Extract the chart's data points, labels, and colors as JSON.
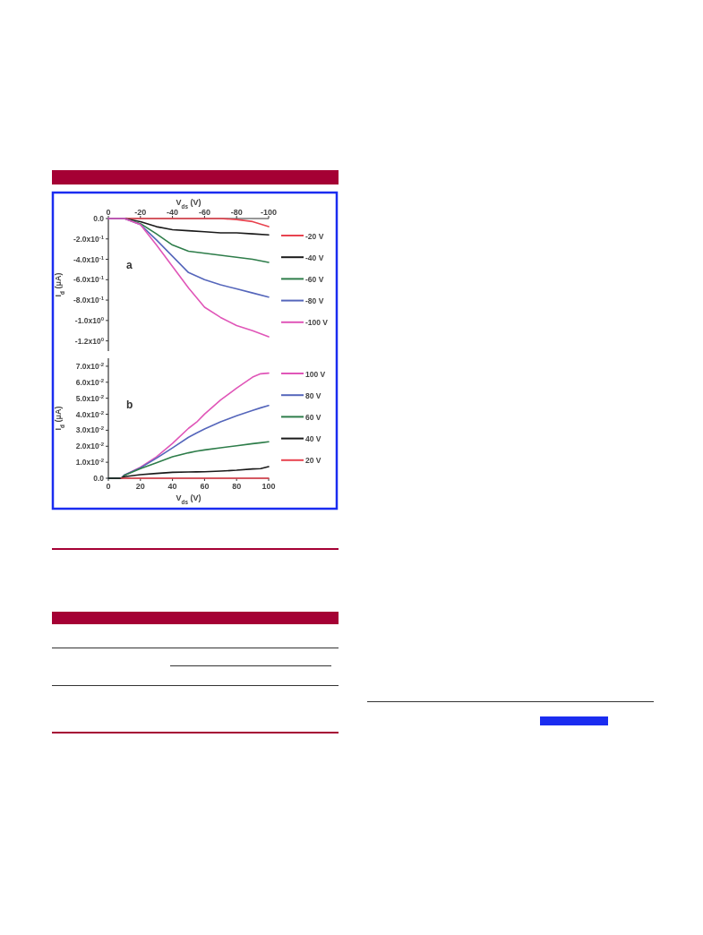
{
  "chart_data": [
    {
      "type": "line",
      "xlabel": "V$_{ds}$ (V)",
      "ylabel": "I$_{d}$ (μA)",
      "annotations": [
        "a"
      ],
      "legend": "right",
      "xlim": [
        0,
        -100
      ],
      "xticks": [
        0,
        -20,
        -40,
        -60,
        -80,
        -100
      ],
      "ylim": [
        -1.3,
        0
      ],
      "yticks": [
        {
          "value": 0,
          "label": "0.0"
        },
        {
          "value": -0.2,
          "label": "-2.0x10$^{-1}$"
        },
        {
          "value": -0.4,
          "label": "-4.0x10$^{-1}$"
        },
        {
          "value": -0.6,
          "label": "-6.0x10$^{-1}$"
        },
        {
          "value": -0.8,
          "label": "-8.0x10$^{-1}$"
        },
        {
          "value": -1.0,
          "label": "-1.0x10$^{0}$"
        },
        {
          "value": -1.2,
          "label": "-1.2x10$^{0}$"
        }
      ],
      "x": [
        0,
        -10,
        -20,
        -30,
        -40,
        -50,
        -60,
        -70,
        -80,
        -90,
        -100
      ],
      "series": [
        {
          "name": "-20 V",
          "color": "#e8434f",
          "values": [
            0,
            0,
            0,
            0,
            0,
            0,
            0,
            0,
            -0.01,
            -0.03,
            -0.08
          ]
        },
        {
          "name": "-40 V",
          "color": "#1a1a1a",
          "values": [
            0,
            0,
            -0.03,
            -0.08,
            -0.11,
            -0.12,
            -0.13,
            -0.14,
            -0.14,
            -0.15,
            -0.16
          ]
        },
        {
          "name": "-60 V",
          "color": "#2e7d4a",
          "values": [
            0,
            0,
            -0.05,
            -0.15,
            -0.26,
            -0.32,
            -0.34,
            -0.36,
            -0.38,
            -0.4,
            -0.43
          ]
        },
        {
          "name": "-80 V",
          "color": "#5566bb",
          "values": [
            0,
            0,
            -0.06,
            -0.21,
            -0.37,
            -0.53,
            -0.6,
            -0.65,
            -0.69,
            -0.73,
            -0.77
          ]
        },
        {
          "name": "-100 V",
          "color": "#e056b8",
          "values": [
            0,
            0,
            -0.06,
            -0.26,
            -0.47,
            -0.68,
            -0.87,
            -0.97,
            -1.05,
            -1.1,
            -1.16
          ]
        }
      ]
    },
    {
      "type": "line",
      "xlabel": "V$_{ds}$ (V)",
      "ylabel": "I$_{d}$ (μA)",
      "annotations": [
        "b"
      ],
      "legend": "right",
      "xlim": [
        0,
        100
      ],
      "xticks": [
        0,
        20,
        40,
        60,
        80,
        100
      ],
      "ylim": [
        0,
        0.075
      ],
      "yticks": [
        {
          "value": 0,
          "label": "0.0"
        },
        {
          "value": 0.01,
          "label": "1.0x10$^{-2}$"
        },
        {
          "value": 0.02,
          "label": "2.0x10$^{-2}$"
        },
        {
          "value": 0.03,
          "label": "3.0x10$^{-2}$"
        },
        {
          "value": 0.04,
          "label": "4.0x10$^{-2}$"
        },
        {
          "value": 0.05,
          "label": "5.0x10$^{-2}$"
        },
        {
          "value": 0.06,
          "label": "6.0x10$^{-2}$"
        },
        {
          "value": 0.07,
          "label": "7.0x10$^{-2}$"
        }
      ],
      "x": [
        0,
        8,
        10,
        20,
        30,
        40,
        50,
        55,
        60,
        70,
        80,
        90,
        95,
        100
      ],
      "series": [
        {
          "name": "100 V",
          "color": "#e056b8",
          "values": [
            0,
            0,
            0.002,
            0.0069,
            0.0134,
            0.0218,
            0.0312,
            0.035,
            0.0401,
            0.0489,
            0.0563,
            0.0632,
            0.0653,
            0.0657
          ]
        },
        {
          "name": "80 V",
          "color": "#5566bb",
          "values": [
            0,
            0,
            0.002,
            0.0065,
            0.0125,
            0.019,
            0.0256,
            0.0283,
            0.0308,
            0.0353,
            0.039,
            0.0424,
            0.044,
            0.0455
          ]
        },
        {
          "name": "60 V",
          "color": "#2e7d4a",
          "values": [
            0,
            0,
            0.0018,
            0.006,
            0.0097,
            0.0134,
            0.0159,
            0.0169,
            0.0177,
            0.019,
            0.0203,
            0.0216,
            0.0222,
            0.0228
          ]
        },
        {
          "name": "40 V",
          "color": "#1a1a1a",
          "values": [
            0,
            0,
            0.001,
            0.0022,
            0.003,
            0.0037,
            0.0039,
            0.004,
            0.0041,
            0.0045,
            0.005,
            0.0058,
            0.006,
            0.0073
          ]
        },
        {
          "name": "20 V",
          "color": "#e8434f",
          "values": [
            null,
            0,
            0,
            0,
            0,
            0,
            0,
            0,
            0,
            0,
            0,
            0,
            0,
            0
          ]
        }
      ]
    }
  ]
}
